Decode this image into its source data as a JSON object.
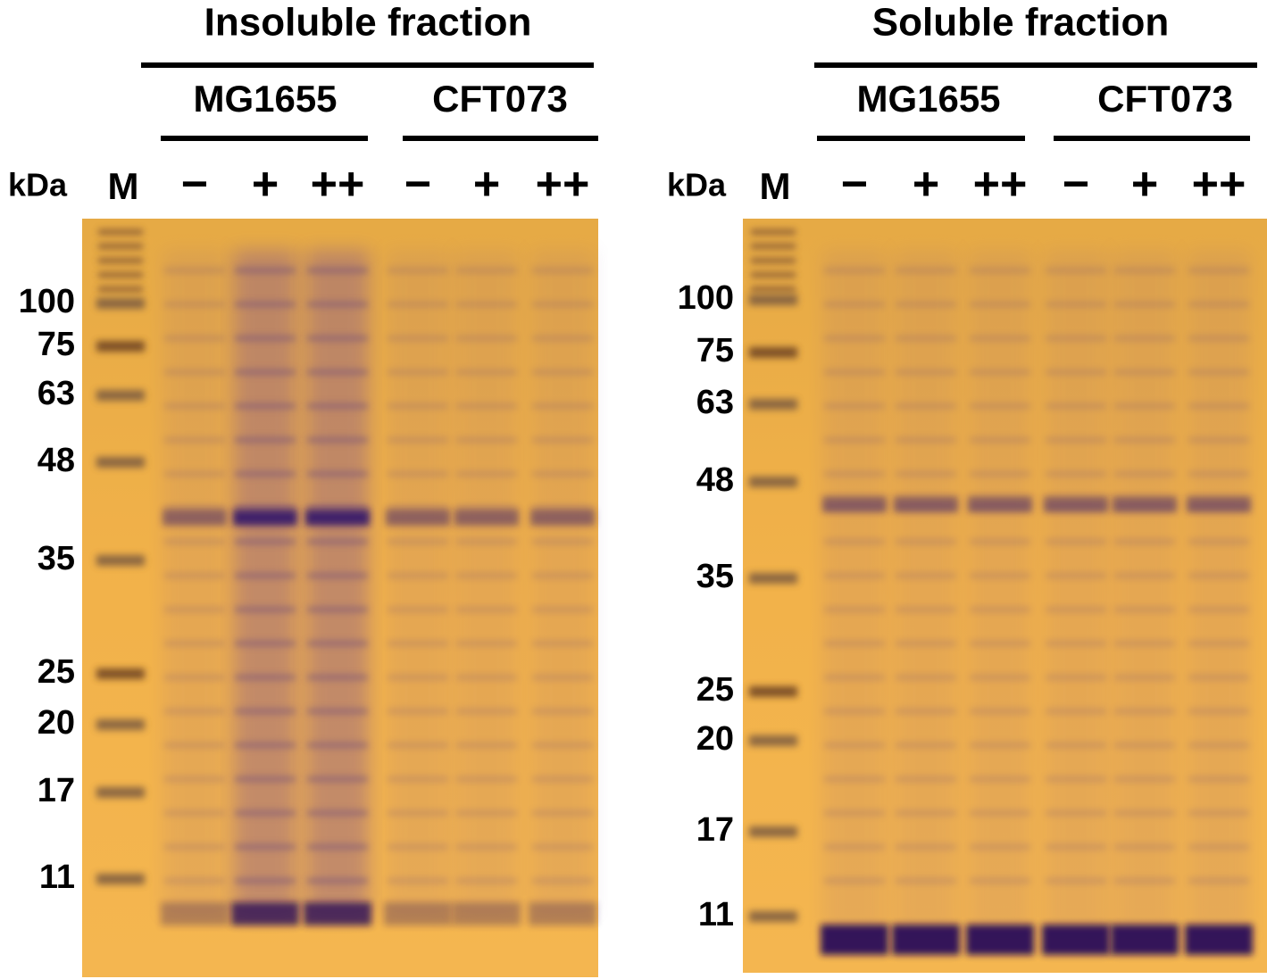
{
  "panels": [
    {
      "title": "Insoluble fraction",
      "groups": [
        "MG1655",
        "CFT073"
      ],
      "unit_label": "kDa",
      "marker_lane_label": "M",
      "lane_labels": [
        "−",
        "+",
        "++",
        "−",
        "+",
        "++"
      ],
      "marker_labels": [
        "100",
        "75",
        "63",
        "48",
        "35",
        "25",
        "20",
        "17",
        "11"
      ]
    },
    {
      "title": "Soluble fraction",
      "groups": [
        "MG1655",
        "CFT073"
      ],
      "unit_label": "kDa",
      "marker_lane_label": "M",
      "lane_labels": [
        "−",
        "+",
        "++",
        "−",
        "+",
        "++"
      ],
      "marker_labels": [
        "100",
        "75",
        "63",
        "48",
        "35",
        "25",
        "20",
        "17",
        "11"
      ]
    }
  ]
}
